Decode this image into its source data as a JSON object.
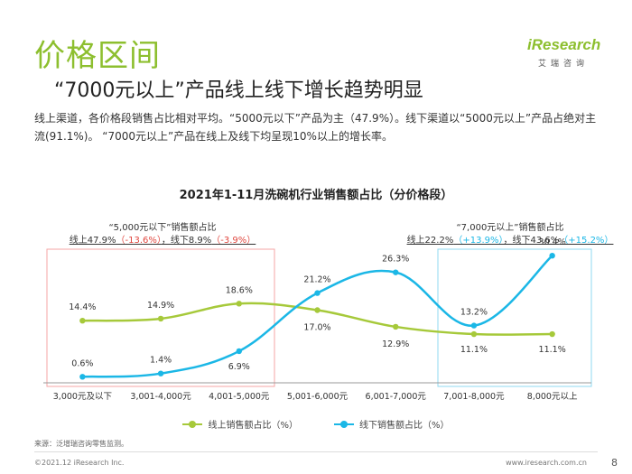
{
  "header": {
    "title": "价格区间",
    "subtitle": "“7000元以上”产品线上线下增长趋势明显",
    "description": "线上渠道，各价格段销售占比相对平均。“5000元以下”产品为主（47.9%）。线下渠道以“5000元以上”产品占绝对主流(91.1%)。 “7000元以上”产品在线上及线下均呈现10%以上的增长率。"
  },
  "logo": {
    "main": "iResearch",
    "sub": "艾瑞咨询"
  },
  "annotations": {
    "left": {
      "line1": "“5,000元以下”销售额占比",
      "line2_a": "线上47.9%",
      "line2_b": "（-13.6%）",
      "line2_c": "，线下8.9%",
      "line2_d": "（-3.9%）"
    },
    "right": {
      "line1": "“7,000元以上”销售额占比",
      "line2_a": "线上22.2%",
      "line2_b": "（+13.9%）",
      "line2_c": "，线下43.6%",
      "line2_d": "（+15.2%）"
    }
  },
  "chart_data": {
    "type": "line",
    "title": "2021年1-11月洗碗机行业销售额占比（分价格段）",
    "categories": [
      "3,000元及以下",
      "3,001-4,000元",
      "4,001-5,000元",
      "5,001-6,000元",
      "6,001-7,000元",
      "7,001-8,000元",
      "8,000元以上"
    ],
    "series": [
      {
        "name": "线上销售额占比（%）",
        "values": [
          14.4,
          14.9,
          18.6,
          17.0,
          12.9,
          11.1,
          11.1
        ],
        "labels": [
          "14.4%",
          "14.9%",
          "18.6%",
          "17.0%",
          "12.9%",
          "11.1%",
          "11.1%"
        ],
        "color": "#a6c93a"
      },
      {
        "name": "线下销售额占比（%）",
        "values": [
          0.6,
          1.4,
          6.9,
          21.2,
          26.3,
          13.2,
          30.4
        ],
        "labels": [
          "0.6%",
          "1.4%",
          "6.9%",
          "21.2%",
          "26.3%",
          "13.2%",
          "30.4%"
        ],
        "color": "#1bb7e6"
      }
    ],
    "ylim": [
      0,
      32
    ],
    "legend": "bottom",
    "grid": false,
    "highlight_colors": {
      "left_box": "#f4a6a6",
      "right_box": "#8fd8f0"
    }
  },
  "footer": {
    "source": "来源：泛增瑞咨询零售监测。",
    "copyright": "©2021.12 iResearch Inc.",
    "website": "www.iresearch.com.cn",
    "page": "8"
  }
}
